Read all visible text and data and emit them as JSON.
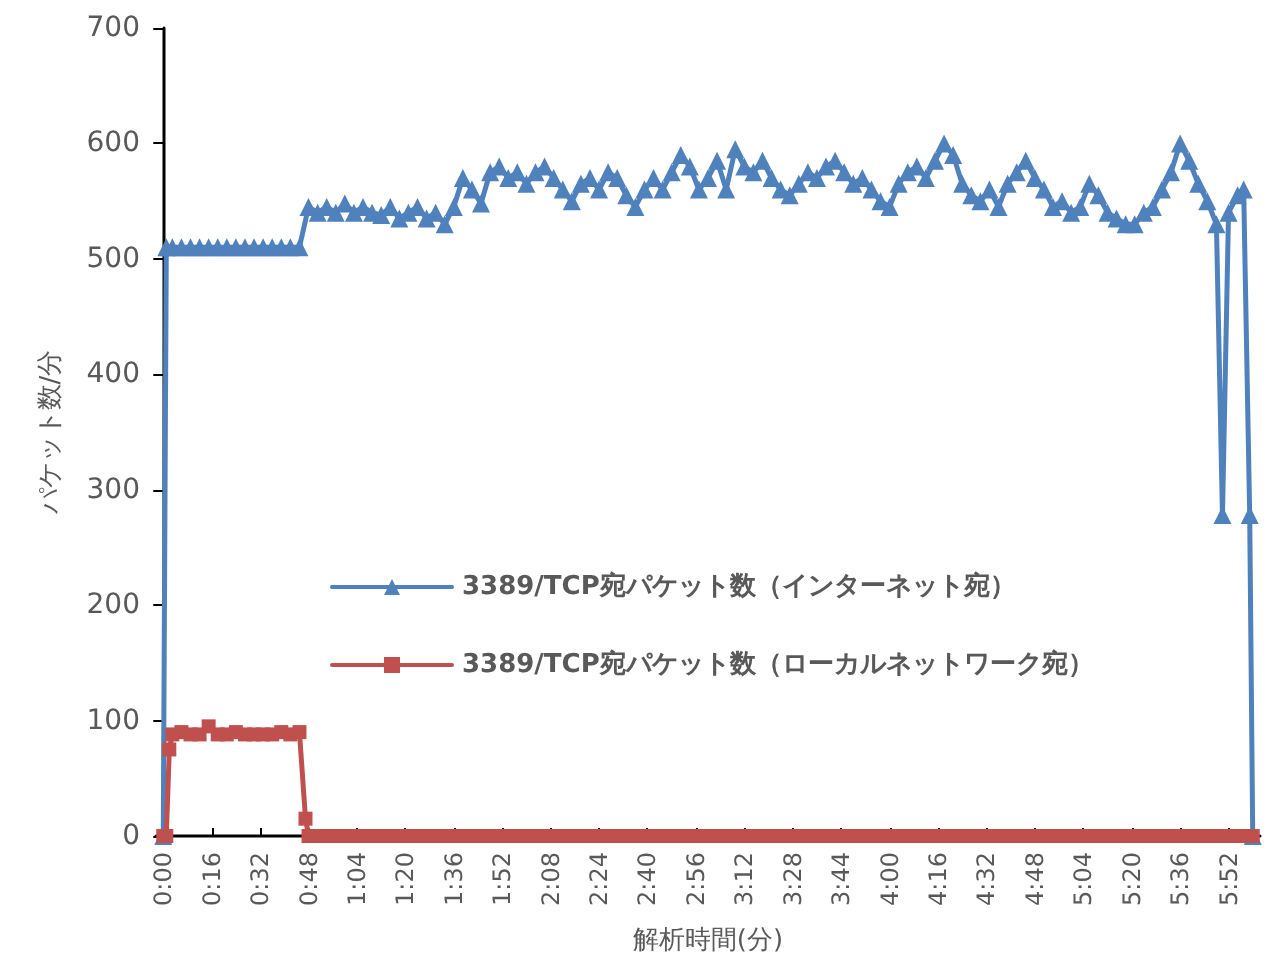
{
  "chart_data": {
    "type": "line",
    "xlabel": "解析時間(分)",
    "ylabel": "パケット数/分",
    "xlim": [
      -0.04,
      6.04
    ],
    "ylim": [
      0,
      700
    ],
    "yticks": [
      0,
      100,
      200,
      300,
      400,
      500,
      600,
      700
    ],
    "xticks": [
      {
        "value": 0,
        "label": "0:00"
      },
      {
        "value": 0.2667,
        "label": "0:16"
      },
      {
        "value": 0.5333,
        "label": "0:32"
      },
      {
        "value": 0.8,
        "label": "0:48"
      },
      {
        "value": 1.0667,
        "label": "1:04"
      },
      {
        "value": 1.3333,
        "label": "1:20"
      },
      {
        "value": 1.6,
        "label": "1:36"
      },
      {
        "value": 1.8667,
        "label": "1:52"
      },
      {
        "value": 2.1333,
        "label": "2:08"
      },
      {
        "value": 2.4,
        "label": "2:24"
      },
      {
        "value": 2.6667,
        "label": "2:40"
      },
      {
        "value": 2.9333,
        "label": "2:56"
      },
      {
        "value": 3.2,
        "label": "3:12"
      },
      {
        "value": 3.4667,
        "label": "3:28"
      },
      {
        "value": 3.7333,
        "label": "3:44"
      },
      {
        "value": 4,
        "label": "4:00"
      },
      {
        "value": 4.2667,
        "label": "4:16"
      },
      {
        "value": 4.5333,
        "label": "4:32"
      },
      {
        "value": 4.8,
        "label": "4:48"
      },
      {
        "value": 5.0667,
        "label": "5:04"
      },
      {
        "value": 5.3333,
        "label": "5:20"
      },
      {
        "value": 5.6,
        "label": "5:36"
      },
      {
        "value": 5.8667,
        "label": "5:52"
      }
    ],
    "grid": false,
    "legend": "center",
    "line_style": "solid",
    "series": [
      {
        "name": "3389/TCP宛パケット数（インターネット宛）",
        "color": "#4f81bd",
        "marker": "triangle",
        "x": [
          0,
          0.0167,
          0.05,
          0.1,
          0.15,
          0.2,
          0.25,
          0.3,
          0.35,
          0.4,
          0.45,
          0.5,
          0.55,
          0.6,
          0.65,
          0.7,
          0.75,
          0.8,
          0.85,
          0.9,
          0.95,
          1,
          1.05,
          1.1,
          1.15,
          1.2,
          1.25,
          1.3,
          1.35,
          1.4,
          1.45,
          1.5,
          1.55,
          1.6,
          1.65,
          1.7,
          1.75,
          1.8,
          1.85,
          1.9,
          1.95,
          2,
          2.05,
          2.1,
          2.15,
          2.2,
          2.25,
          2.3,
          2.35,
          2.4,
          2.45,
          2.5,
          2.55,
          2.6,
          2.65,
          2.7,
          2.75,
          2.8,
          2.85,
          2.9,
          2.95,
          3,
          3.05,
          3.1,
          3.15,
          3.2,
          3.25,
          3.3,
          3.35,
          3.4,
          3.45,
          3.5,
          3.55,
          3.6,
          3.65,
          3.7,
          3.75,
          3.8,
          3.85,
          3.9,
          3.95,
          4,
          4.05,
          4.1,
          4.15,
          4.2,
          4.25,
          4.3,
          4.35,
          4.4,
          4.45,
          4.5,
          4.55,
          4.6,
          4.65,
          4.7,
          4.75,
          4.8,
          4.85,
          4.9,
          4.95,
          5,
          5.05,
          5.1,
          5.15,
          5.2,
          5.25,
          5.3,
          5.35,
          5.4,
          5.45,
          5.5,
          5.55,
          5.6,
          5.65,
          5.7,
          5.75,
          5.8,
          5.8333,
          5.8667,
          5.9167,
          5.95,
          5.9833,
          6
        ],
        "values": [
          0,
          510,
          510,
          510,
          510,
          510,
          510,
          510,
          510,
          510,
          510,
          510,
          510,
          510,
          510,
          510,
          510,
          545,
          540,
          545,
          540,
          548,
          540,
          545,
          540,
          538,
          545,
          535,
          540,
          545,
          535,
          540,
          530,
          545,
          570,
          560,
          548,
          575,
          580,
          570,
          575,
          565,
          575,
          580,
          570,
          560,
          550,
          565,
          570,
          560,
          575,
          570,
          555,
          545,
          560,
          570,
          560,
          575,
          590,
          580,
          560,
          570,
          585,
          560,
          595,
          580,
          575,
          585,
          570,
          560,
          555,
          565,
          575,
          570,
          580,
          585,
          575,
          565,
          570,
          560,
          550,
          545,
          565,
          575,
          580,
          570,
          585,
          600,
          590,
          565,
          555,
          550,
          560,
          545,
          565,
          575,
          585,
          570,
          560,
          545,
          550,
          540,
          545,
          565,
          555,
          540,
          535,
          530,
          530,
          540,
          545,
          560,
          575,
          600,
          585,
          565,
          550,
          530,
          278,
          540,
          555,
          560,
          278,
          0
        ]
      },
      {
        "name": "3389/TCP宛パケット数（ローカルネットワーク宛）",
        "color": "#c0504d",
        "marker": "square",
        "x": [
          0,
          0.0167,
          0.0333,
          0.05,
          0.1,
          0.15,
          0.2,
          0.25,
          0.3,
          0.35,
          0.4,
          0.45,
          0.5,
          0.55,
          0.6,
          0.65,
          0.7,
          0.75,
          0.7833,
          0.8,
          0.85,
          0.9,
          0.95,
          1,
          1.05,
          1.1,
          1.15,
          1.2,
          1.25,
          1.3,
          1.35,
          1.4,
          1.45,
          1.5,
          1.55,
          1.6,
          1.65,
          1.7,
          1.75,
          1.8,
          1.85,
          1.9,
          1.95,
          2,
          2.05,
          2.1,
          2.15,
          2.2,
          2.25,
          2.3,
          2.35,
          2.4,
          2.45,
          2.5,
          2.55,
          2.6,
          2.65,
          2.7,
          2.75,
          2.8,
          2.85,
          2.9,
          2.95,
          3,
          3.05,
          3.1,
          3.15,
          3.2,
          3.25,
          3.3,
          3.35,
          3.4,
          3.45,
          3.5,
          3.55,
          3.6,
          3.65,
          3.7,
          3.75,
          3.8,
          3.85,
          3.9,
          3.95,
          4,
          4.05,
          4.1,
          4.15,
          4.2,
          4.25,
          4.3,
          4.35,
          4.4,
          4.45,
          4.5,
          4.55,
          4.6,
          4.65,
          4.7,
          4.75,
          4.8,
          4.85,
          4.9,
          4.95,
          5,
          5.05,
          5.1,
          5.15,
          5.2,
          5.25,
          5.3,
          5.35,
          5.4,
          5.45,
          5.5,
          5.55,
          5.6,
          5.65,
          5.7,
          5.75,
          5.8,
          5.85,
          5.9,
          5.95,
          6
        ],
        "values": [
          0,
          0,
          75,
          88,
          90,
          88,
          88,
          95,
          88,
          88,
          90,
          88,
          88,
          88,
          88,
          90,
          88,
          90,
          15,
          0,
          0,
          0,
          0,
          0,
          0,
          0,
          0,
          0,
          0,
          0,
          0,
          0,
          0,
          0,
          0,
          0,
          0,
          0,
          0,
          0,
          0,
          0,
          0,
          0,
          0,
          0,
          0,
          0,
          0,
          0,
          0,
          0,
          0,
          0,
          0,
          0,
          0,
          0,
          0,
          0,
          0,
          0,
          0,
          0,
          0,
          0,
          0,
          0,
          0,
          0,
          0,
          0,
          0,
          0,
          0,
          0,
          0,
          0,
          0,
          0,
          0,
          0,
          0,
          0,
          0,
          0,
          0,
          0,
          0,
          0,
          0,
          0,
          0,
          0,
          0,
          0,
          0,
          0,
          0,
          0,
          0,
          0,
          0,
          0,
          0,
          0,
          0,
          0,
          0,
          0,
          0,
          0,
          0,
          0,
          0,
          0,
          0,
          0,
          0,
          0,
          0,
          0,
          0,
          0
        ]
      }
    ]
  }
}
